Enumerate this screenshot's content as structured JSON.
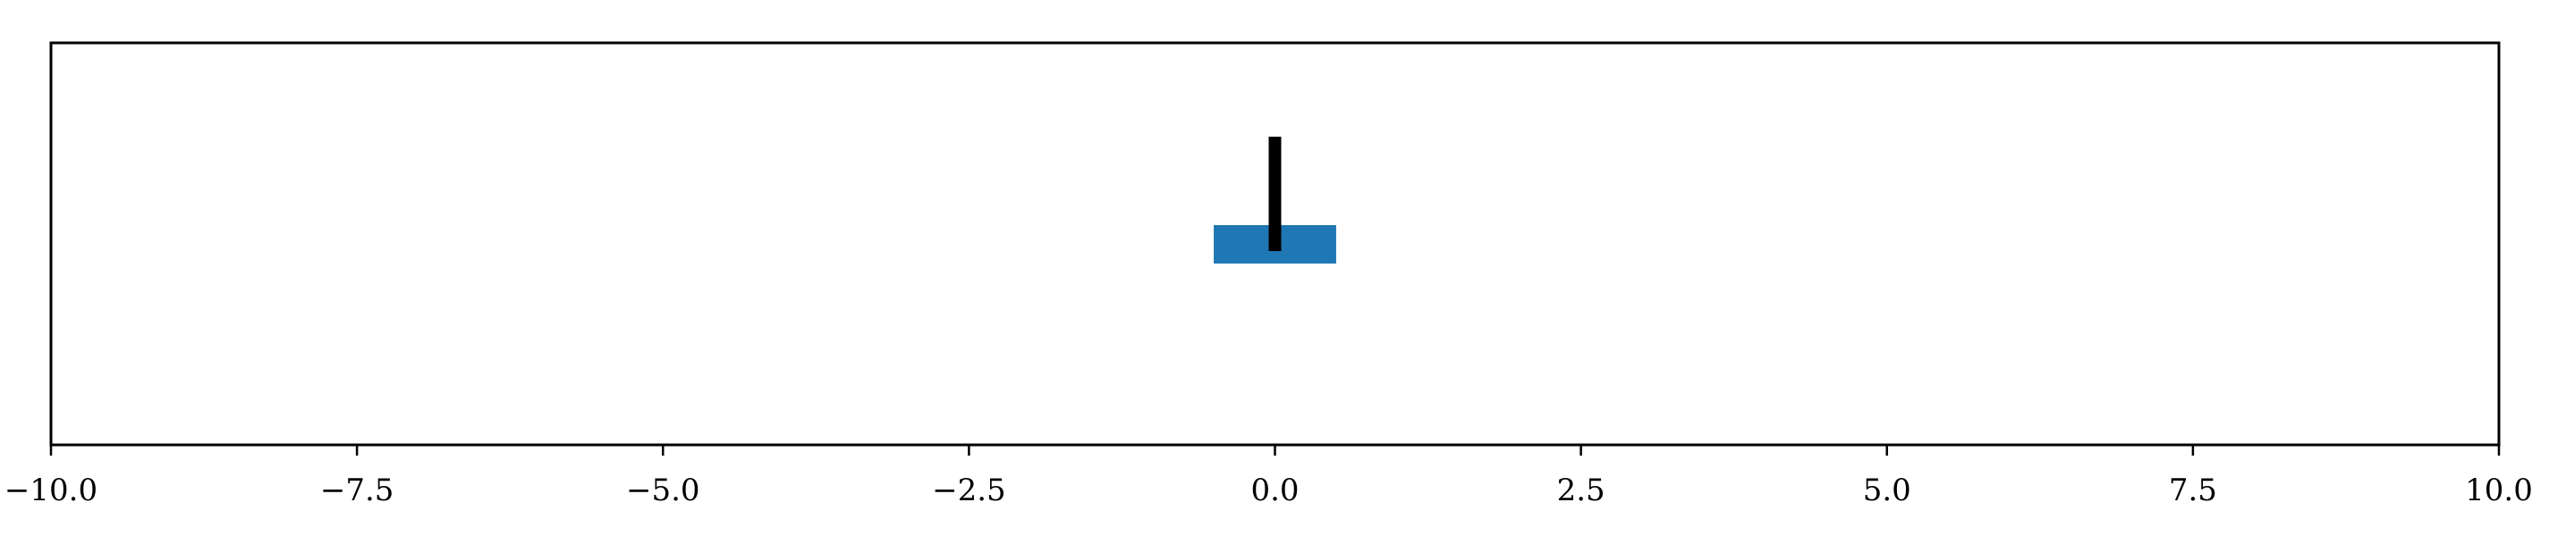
{
  "chart_data": {
    "type": "bar",
    "orientation": "horizontal",
    "title": "",
    "xlabel": "",
    "ylabel": "",
    "xlim": [
      -10.0,
      10.0
    ],
    "xticks": [
      -10.0,
      -7.5,
      -5.0,
      -2.5,
      0.0,
      2.5,
      5.0,
      7.5,
      10.0
    ],
    "xtick_labels": [
      "−10.0",
      "−7.5",
      "−5.0",
      "−2.5",
      "0.0",
      "2.5",
      "5.0",
      "7.5",
      "10.0"
    ],
    "y_axis_visible": false,
    "grid": false,
    "bars": [
      {
        "left": -0.5,
        "right": 0.5,
        "color": "#1f77b4"
      }
    ],
    "vertical_marker": {
      "x": 0.0,
      "color": "#000000"
    }
  }
}
